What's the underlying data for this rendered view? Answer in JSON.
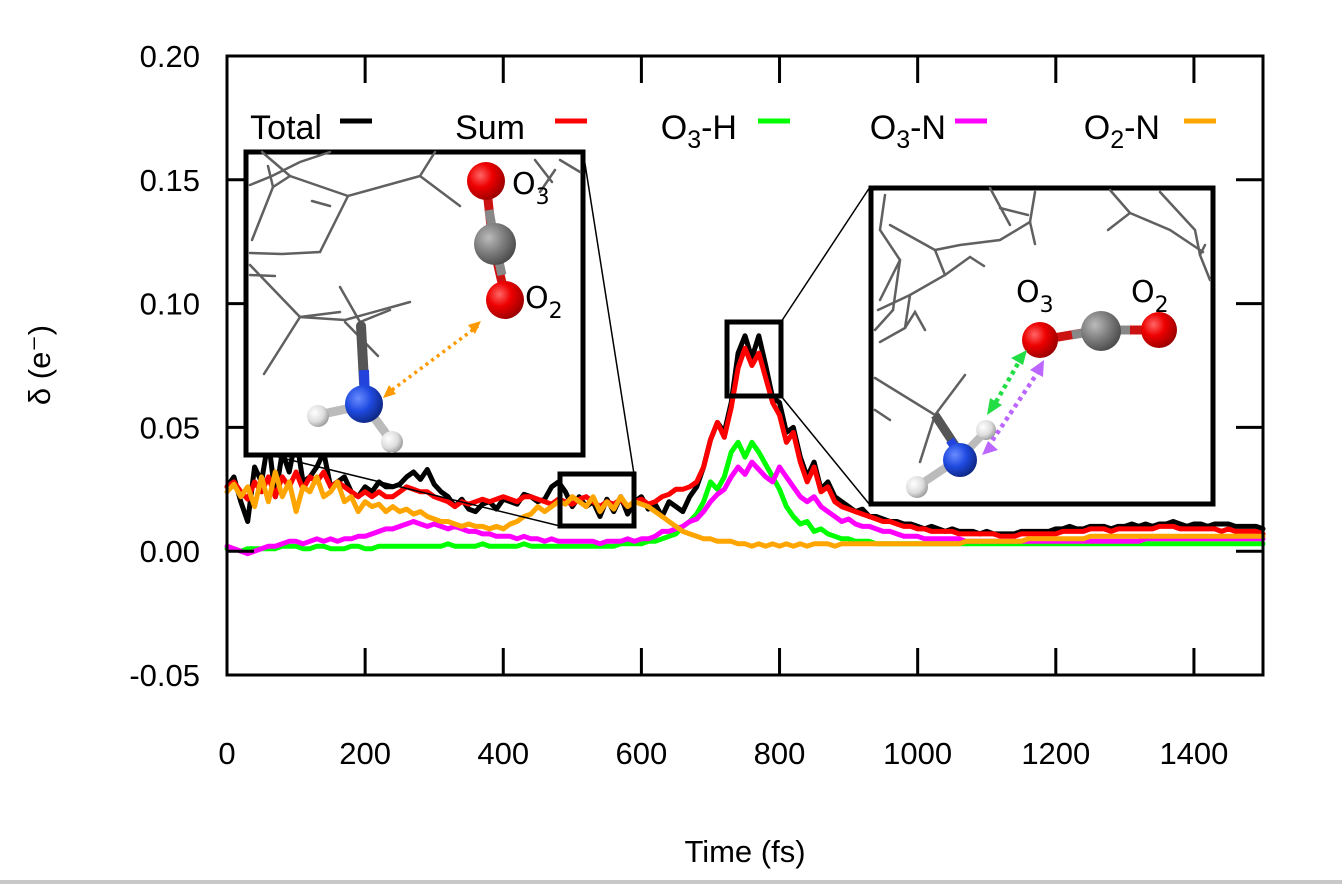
{
  "chart_data": {
    "type": "line",
    "title": "",
    "xlabel": "Time (fs)",
    "ylabel": "δ (e⁻)",
    "xlim": [
      0,
      1500
    ],
    "ylim": [
      -0.05,
      0.2
    ],
    "grid": false,
    "legend_position": "top",
    "x_ticks": [
      0,
      200,
      400,
      600,
      800,
      1000,
      1200,
      1400
    ],
    "x_tick_labels": [
      "0",
      "200",
      "400",
      "600",
      "800",
      "1000",
      "1200",
      "1400"
    ],
    "y_ticks": [
      -0.05,
      0.0,
      0.05,
      0.1,
      0.15,
      0.2
    ],
    "y_tick_labels": [
      "-0.05",
      "0.00",
      "0.05",
      "0.10",
      "0.15",
      "0.20"
    ],
    "x_step": 10,
    "series": [
      {
        "name": "Total",
        "label_main": "Total",
        "label_sub": "",
        "label_tail": "",
        "color": "#000000",
        "values": [
          0.026,
          0.03,
          0.02,
          0.012,
          0.034,
          0.028,
          0.045,
          0.022,
          0.04,
          0.032,
          0.046,
          0.028,
          0.03,
          0.034,
          0.04,
          0.026,
          0.028,
          0.03,
          0.024,
          0.022,
          0.026,
          0.024,
          0.028,
          0.026,
          0.026,
          0.027,
          0.03,
          0.032,
          0.029,
          0.033,
          0.027,
          0.024,
          0.022,
          0.018,
          0.021,
          0.017,
          0.016,
          0.019,
          0.02,
          0.017,
          0.021,
          0.02,
          0.019,
          0.023,
          0.022,
          0.02,
          0.021,
          0.026,
          0.028,
          0.024,
          0.018,
          0.022,
          0.018,
          0.02,
          0.014,
          0.021,
          0.016,
          0.022,
          0.015,
          0.02,
          0.022,
          0.017,
          0.019,
          0.014,
          0.02,
          0.018,
          0.016,
          0.022,
          0.026,
          0.034,
          0.045,
          0.052,
          0.048,
          0.06,
          0.08,
          0.087,
          0.078,
          0.087,
          0.075,
          0.062,
          0.06,
          0.048,
          0.05,
          0.038,
          0.03,
          0.036,
          0.025,
          0.028,
          0.022,
          0.02,
          0.018,
          0.016,
          0.017,
          0.014,
          0.014,
          0.013,
          0.012,
          0.012,
          0.011,
          0.011,
          0.01,
          0.009,
          0.01,
          0.009,
          0.008,
          0.009,
          0.008,
          0.008,
          0.008,
          0.007,
          0.008,
          0.007,
          0.007,
          0.007,
          0.007,
          0.008,
          0.008,
          0.008,
          0.008,
          0.008,
          0.009,
          0.009,
          0.01,
          0.009,
          0.009,
          0.01,
          0.01,
          0.01,
          0.009,
          0.01,
          0.01,
          0.011,
          0.01,
          0.011,
          0.01,
          0.011,
          0.011,
          0.012,
          0.011,
          0.01,
          0.011,
          0.011,
          0.01,
          0.011,
          0.011,
          0.011,
          0.01,
          0.01,
          0.01,
          0.01,
          0.009
        ]
      },
      {
        "name": "Sum",
        "label_main": "Sum",
        "label_sub": "",
        "label_tail": "",
        "color": "#ff0000",
        "values": [
          0.026,
          0.028,
          0.024,
          0.021,
          0.028,
          0.024,
          0.03,
          0.022,
          0.03,
          0.026,
          0.032,
          0.025,
          0.03,
          0.028,
          0.032,
          0.026,
          0.028,
          0.026,
          0.024,
          0.022,
          0.024,
          0.022,
          0.024,
          0.022,
          0.022,
          0.024,
          0.026,
          0.025,
          0.024,
          0.024,
          0.022,
          0.021,
          0.02,
          0.018,
          0.02,
          0.019,
          0.02,
          0.021,
          0.02,
          0.021,
          0.022,
          0.021,
          0.02,
          0.022,
          0.022,
          0.021,
          0.02,
          0.019,
          0.021,
          0.02,
          0.019,
          0.021,
          0.022,
          0.02,
          0.018,
          0.02,
          0.019,
          0.021,
          0.018,
          0.02,
          0.021,
          0.019,
          0.02,
          0.022,
          0.023,
          0.025,
          0.025,
          0.026,
          0.028,
          0.034,
          0.045,
          0.052,
          0.046,
          0.058,
          0.074,
          0.082,
          0.075,
          0.08,
          0.07,
          0.06,
          0.055,
          0.044,
          0.048,
          0.036,
          0.028,
          0.034,
          0.024,
          0.026,
          0.02,
          0.018,
          0.017,
          0.016,
          0.015,
          0.014,
          0.013,
          0.012,
          0.012,
          0.011,
          0.01,
          0.01,
          0.009,
          0.009,
          0.008,
          0.008,
          0.008,
          0.008,
          0.007,
          0.007,
          0.007,
          0.007,
          0.007,
          0.007,
          0.006,
          0.006,
          0.006,
          0.007,
          0.007,
          0.007,
          0.007,
          0.007,
          0.007,
          0.008,
          0.008,
          0.008,
          0.008,
          0.009,
          0.009,
          0.009,
          0.008,
          0.009,
          0.009,
          0.009,
          0.009,
          0.009,
          0.009,
          0.01,
          0.01,
          0.01,
          0.009,
          0.009,
          0.009,
          0.009,
          0.009,
          0.009,
          0.008,
          0.009,
          0.008,
          0.008,
          0.008,
          0.008,
          0.007
        ]
      },
      {
        "name": "O3-H",
        "label_main": "O",
        "label_sub": "3",
        "label_tail": "-H",
        "color": "#00ff00",
        "values": [
          0.001,
          0.001,
          0.0,
          0.001,
          0.001,
          0.001,
          0.001,
          0.001,
          0.002,
          0.002,
          0.002,
          0.001,
          0.001,
          0.002,
          0.002,
          0.001,
          0.001,
          0.001,
          0.002,
          0.002,
          0.001,
          0.001,
          0.002,
          0.002,
          0.002,
          0.002,
          0.002,
          0.002,
          0.002,
          0.002,
          0.002,
          0.002,
          0.003,
          0.002,
          0.002,
          0.002,
          0.002,
          0.003,
          0.002,
          0.002,
          0.002,
          0.002,
          0.002,
          0.003,
          0.002,
          0.002,
          0.002,
          0.002,
          0.002,
          0.002,
          0.002,
          0.002,
          0.002,
          0.002,
          0.002,
          0.002,
          0.002,
          0.003,
          0.003,
          0.003,
          0.003,
          0.004,
          0.004,
          0.005,
          0.006,
          0.007,
          0.01,
          0.012,
          0.015,
          0.02,
          0.028,
          0.025,
          0.03,
          0.04,
          0.044,
          0.038,
          0.044,
          0.04,
          0.035,
          0.03,
          0.025,
          0.018,
          0.014,
          0.011,
          0.012,
          0.008,
          0.009,
          0.007,
          0.006,
          0.005,
          0.005,
          0.004,
          0.004,
          0.004,
          0.003,
          0.003,
          0.003,
          0.003,
          0.003,
          0.003,
          0.003,
          0.003,
          0.003,
          0.003,
          0.003,
          0.003,
          0.003,
          0.003,
          0.003,
          0.003,
          0.003,
          0.003,
          0.003,
          0.003,
          0.003,
          0.003,
          0.003,
          0.003,
          0.003,
          0.003,
          0.003,
          0.003,
          0.003,
          0.003,
          0.003,
          0.003,
          0.003,
          0.003,
          0.003,
          0.003,
          0.003,
          0.003,
          0.003,
          0.003,
          0.003,
          0.003,
          0.003,
          0.003,
          0.003,
          0.003,
          0.003,
          0.003,
          0.003,
          0.003,
          0.003,
          0.003,
          0.003,
          0.003,
          0.003,
          0.003,
          0.003
        ]
      },
      {
        "name": "O3-N",
        "label_main": "O",
        "label_sub": "3",
        "label_tail": "-N",
        "color": "#ff00ff",
        "values": [
          0.002,
          0.001,
          0.0,
          -0.001,
          0.0,
          0.001,
          0.002,
          0.002,
          0.003,
          0.004,
          0.004,
          0.003,
          0.004,
          0.005,
          0.004,
          0.005,
          0.004,
          0.005,
          0.005,
          0.006,
          0.006,
          0.007,
          0.008,
          0.009,
          0.009,
          0.01,
          0.011,
          0.012,
          0.011,
          0.01,
          0.011,
          0.01,
          0.009,
          0.01,
          0.009,
          0.008,
          0.008,
          0.007,
          0.007,
          0.006,
          0.006,
          0.006,
          0.005,
          0.006,
          0.005,
          0.005,
          0.004,
          0.005,
          0.004,
          0.004,
          0.004,
          0.004,
          0.004,
          0.004,
          0.003,
          0.004,
          0.004,
          0.004,
          0.005,
          0.004,
          0.005,
          0.005,
          0.006,
          0.008,
          0.008,
          0.009,
          0.01,
          0.012,
          0.013,
          0.016,
          0.02,
          0.023,
          0.025,
          0.03,
          0.034,
          0.031,
          0.036,
          0.033,
          0.03,
          0.028,
          0.034,
          0.03,
          0.026,
          0.022,
          0.02,
          0.022,
          0.018,
          0.016,
          0.014,
          0.012,
          0.013,
          0.011,
          0.01,
          0.01,
          0.009,
          0.008,
          0.008,
          0.007,
          0.006,
          0.006,
          0.006,
          0.005,
          0.005,
          0.005,
          0.005,
          0.005,
          0.005,
          0.004,
          0.004,
          0.004,
          0.004,
          0.004,
          0.004,
          0.004,
          0.004,
          0.004,
          0.004,
          0.004,
          0.004,
          0.004,
          0.004,
          0.004,
          0.004,
          0.004,
          0.004,
          0.004,
          0.004,
          0.004,
          0.004,
          0.004,
          0.004,
          0.004,
          0.004,
          0.005,
          0.005,
          0.005,
          0.005,
          0.005,
          0.005,
          0.005,
          0.005,
          0.005,
          0.005,
          0.005,
          0.005,
          0.005,
          0.005,
          0.005,
          0.005,
          0.005,
          0.005
        ]
      },
      {
        "name": "O2-N",
        "label_main": "O",
        "label_sub": "2",
        "label_tail": "-N",
        "color": "#ffa500",
        "values": [
          0.024,
          0.027,
          0.022,
          0.026,
          0.018,
          0.03,
          0.02,
          0.032,
          0.022,
          0.028,
          0.016,
          0.026,
          0.024,
          0.03,
          0.022,
          0.024,
          0.028,
          0.02,
          0.022,
          0.016,
          0.02,
          0.018,
          0.019,
          0.016,
          0.018,
          0.016,
          0.017,
          0.015,
          0.016,
          0.014,
          0.013,
          0.012,
          0.012,
          0.011,
          0.01,
          0.011,
          0.01,
          0.01,
          0.009,
          0.01,
          0.009,
          0.011,
          0.012,
          0.014,
          0.015,
          0.018,
          0.016,
          0.018,
          0.02,
          0.019,
          0.022,
          0.02,
          0.018,
          0.022,
          0.016,
          0.02,
          0.017,
          0.022,
          0.018,
          0.02,
          0.019,
          0.018,
          0.016,
          0.014,
          0.012,
          0.01,
          0.008,
          0.007,
          0.006,
          0.005,
          0.005,
          0.004,
          0.004,
          0.004,
          0.003,
          0.003,
          0.002,
          0.003,
          0.002,
          0.003,
          0.002,
          0.003,
          0.002,
          0.003,
          0.002,
          0.003,
          0.003,
          0.003,
          0.002,
          0.003,
          0.003,
          0.003,
          0.003,
          0.003,
          0.003,
          0.003,
          0.003,
          0.003,
          0.003,
          0.003,
          0.003,
          0.003,
          0.003,
          0.003,
          0.003,
          0.003,
          0.003,
          0.004,
          0.004,
          0.004,
          0.004,
          0.004,
          0.004,
          0.004,
          0.004,
          0.004,
          0.005,
          0.005,
          0.005,
          0.005,
          0.005,
          0.005,
          0.005,
          0.005,
          0.005,
          0.006,
          0.006,
          0.006,
          0.006,
          0.006,
          0.006,
          0.006,
          0.006,
          0.006,
          0.006,
          0.006,
          0.006,
          0.006,
          0.006,
          0.006,
          0.006,
          0.006,
          0.006,
          0.006,
          0.006,
          0.006,
          0.006,
          0.006,
          0.006,
          0.006,
          0.006
        ]
      }
    ],
    "annotations": [
      {
        "name": "left-inset",
        "zoom_region": {
          "x_range": [
            480,
            590
          ],
          "y_range": [
            0.01,
            0.032
          ]
        },
        "atom_labels": [
          {
            "main": "O",
            "sub": "3"
          },
          {
            "main": "O",
            "sub": "2"
          }
        ],
        "arrow_color": "#ff9900",
        "description": "O2-N distance"
      },
      {
        "name": "right-inset",
        "zoom_region": {
          "x_range": [
            724,
            802
          ],
          "y_range": [
            0.063,
            0.093
          ]
        },
        "atom_labels": [
          {
            "main": "O",
            "sub": "3"
          },
          {
            "main": "O",
            "sub": "2"
          }
        ],
        "arrow_colors": [
          "#22dd44",
          "#bb66ff"
        ],
        "description": "O3-H and O3-N distances"
      }
    ]
  }
}
